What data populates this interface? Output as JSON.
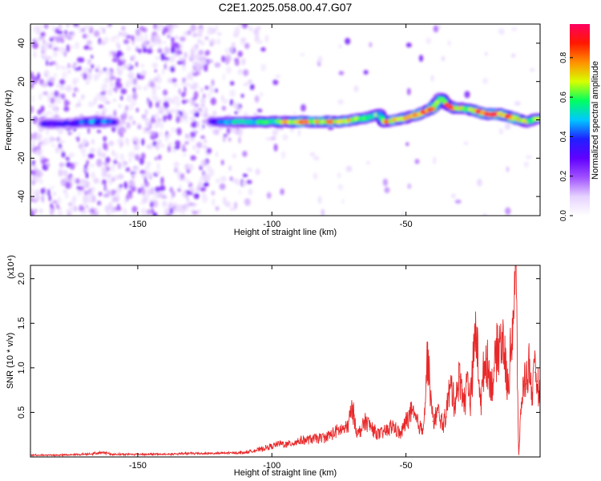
{
  "figure": {
    "title": "C2E1.2025.058.00.47.G07"
  },
  "colorbar": {
    "label": "Normalized spectral amplitude",
    "ticks": [
      "0.0",
      "0.2",
      "0.4",
      "0.6",
      "0.8"
    ],
    "tick_values": [
      0.0,
      0.2,
      0.4,
      0.6,
      0.8
    ],
    "range": [
      0.0,
      0.97
    ],
    "colors": [
      "#ffffff",
      "#e6d2ff",
      "#a050ff",
      "#6000ff",
      "#2020ff",
      "#00c8ff",
      "#00ff60",
      "#d8ff00",
      "#ff9000",
      "#ff1800",
      "#ff0060"
    ]
  },
  "chart_data": [
    {
      "type": "heatmap",
      "xlabel": "Height of straight line (km)",
      "ylabel": "Frequency (Hz)",
      "xlim": [
        -190,
        0
      ],
      "ylim": [
        -50,
        50
      ],
      "xticks": [
        -150,
        -100,
        -50
      ],
      "xtick_labels": [
        "-150",
        "-100",
        "-50"
      ],
      "yticks": [
        -40,
        -20,
        0,
        20,
        40
      ],
      "ytick_labels": [
        "-40",
        "-20",
        "0",
        "20",
        "40"
      ],
      "ridge": {
        "description_points": [
          {
            "x": -185,
            "y": -2,
            "amp": 0.35
          },
          {
            "x": -175,
            "y": -2,
            "amp": 0.35
          },
          {
            "x": -170,
            "y": -1,
            "amp": 0.45
          },
          {
            "x": -165,
            "y": -1,
            "amp": 0.5
          },
          {
            "x": -160,
            "y": -1,
            "amp": 0.4
          },
          {
            "x": -122,
            "y": -1,
            "amp": 0.35
          },
          {
            "x": -115,
            "y": -1,
            "amp": 0.5
          },
          {
            "x": -110,
            "y": -1,
            "amp": 0.55
          },
          {
            "x": -105,
            "y": -1,
            "amp": 0.6
          },
          {
            "x": -100,
            "y": -1,
            "amp": 0.6
          },
          {
            "x": -95,
            "y": -1,
            "amp": 0.7
          },
          {
            "x": -90,
            "y": -1,
            "amp": 0.85
          },
          {
            "x": -85,
            "y": -1,
            "amp": 0.8
          },
          {
            "x": -80,
            "y": -1,
            "amp": 0.8
          },
          {
            "x": -75,
            "y": -1,
            "amp": 0.75
          },
          {
            "x": -70,
            "y": 0,
            "amp": 0.75
          },
          {
            "x": -65,
            "y": 1,
            "amp": 0.7
          },
          {
            "x": -60,
            "y": 3,
            "amp": 0.6
          },
          {
            "x": -58,
            "y": -1,
            "amp": 0.8
          },
          {
            "x": -54,
            "y": 0,
            "amp": 0.75
          },
          {
            "x": -50,
            "y": 1,
            "amp": 0.7
          },
          {
            "x": -45,
            "y": 3,
            "amp": 0.8
          },
          {
            "x": -40,
            "y": 6,
            "amp": 0.85
          },
          {
            "x": -37,
            "y": 12,
            "amp": 0.6
          },
          {
            "x": -35,
            "y": 8,
            "amp": 0.9
          },
          {
            "x": -32,
            "y": 6,
            "amp": 0.8
          },
          {
            "x": -28,
            "y": 6,
            "amp": 0.7
          },
          {
            "x": -25,
            "y": 5,
            "amp": 0.75
          },
          {
            "x": -20,
            "y": 3,
            "amp": 0.95
          },
          {
            "x": -15,
            "y": 3,
            "amp": 0.9
          },
          {
            "x": -10,
            "y": 1,
            "amp": 0.85
          },
          {
            "x": -5,
            "y": -1,
            "amp": 0.7
          },
          {
            "x": 0,
            "y": 1,
            "amp": 0.6
          }
        ]
      }
    },
    {
      "type": "line",
      "xlabel": "Height of straight line (km)",
      "ylabel": "SNR (10 * v/v)",
      "yscale_note": "(x10⁴)",
      "xlim": [
        -190,
        0
      ],
      "ylim": [
        0,
        2.15
      ],
      "xticks": [
        -150,
        -100,
        -50
      ],
      "xtick_labels": [
        "-150",
        "-100",
        "-50"
      ],
      "yticks": [
        0.5,
        1.0,
        1.5,
        2.0
      ],
      "ytick_labels": [
        "0.5",
        "1.0",
        "1.5",
        "2.0"
      ],
      "color": "#e8292a",
      "series": [
        {
          "x": [
            -190,
            -180,
            -170,
            -162,
            -160,
            -150,
            -140,
            -130,
            -120,
            -110,
            -105,
            -100,
            -97,
            -94,
            -90,
            -85,
            -80,
            -75,
            -72,
            -70,
            -68,
            -65,
            -62,
            -60,
            -57,
            -55,
            -52,
            -50,
            -48,
            -46,
            -44,
            -43,
            -42,
            -40,
            -38,
            -36,
            -34,
            -33,
            -32,
            -30,
            -28,
            -27,
            -26,
            -24,
            -22,
            -21,
            -20,
            -18,
            -16,
            -14,
            -12,
            -10,
            -9,
            -8,
            -7,
            -6,
            -5,
            -4,
            -3,
            -2,
            -1,
            0
          ],
          "y": [
            0.02,
            0.02,
            0.03,
            0.05,
            0.03,
            0.03,
            0.03,
            0.04,
            0.04,
            0.05,
            0.08,
            0.12,
            0.15,
            0.14,
            0.18,
            0.2,
            0.22,
            0.3,
            0.32,
            0.55,
            0.25,
            0.4,
            0.3,
            0.25,
            0.3,
            0.35,
            0.25,
            0.4,
            0.5,
            0.4,
            0.3,
            0.55,
            1.15,
            0.4,
            0.5,
            0.35,
            0.7,
            0.8,
            0.6,
            0.9,
            0.6,
            0.95,
            0.6,
            1.45,
            0.6,
            1.0,
            1.1,
            0.8,
            1.2,
            1.35,
            0.75,
            1.6,
            2.15,
            0.0,
            0.6,
            0.85,
            0.9,
            1.05,
            0.7,
            0.95,
            0.85,
            0.65
          ]
        }
      ]
    }
  ]
}
